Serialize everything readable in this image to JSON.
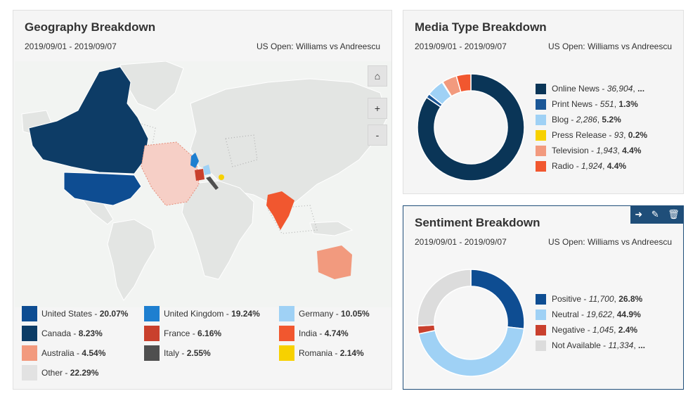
{
  "geography": {
    "title": "Geography Breakdown",
    "date_range": "2019/09/01 - 2019/09/07",
    "topic": "US Open: Williams vs Andreescu",
    "controls": {
      "home_icon": "home-icon",
      "zoom_in_label": "+",
      "zoom_out_label": "-"
    },
    "legend": [
      {
        "name": "United States",
        "pct": "20.07%",
        "color": "#0e4d92"
      },
      {
        "name": "United Kingdom",
        "pct": "19.24%",
        "color": "#1e7fd0"
      },
      {
        "name": "Germany",
        "pct": "10.05%",
        "color": "#9fd1f5"
      },
      {
        "name": "Canada",
        "pct": "8.23%",
        "color": "#0d3c66"
      },
      {
        "name": "France",
        "pct": "6.16%",
        "color": "#c9402d"
      },
      {
        "name": "India",
        "pct": "4.74%",
        "color": "#f1572f"
      },
      {
        "name": "Australia",
        "pct": "4.54%",
        "color": "#f29a7e"
      },
      {
        "name": "Italy",
        "pct": "2.55%",
        "color": "#4f4f4f"
      },
      {
        "name": "Romania",
        "pct": "2.14%",
        "color": "#f7d100"
      },
      {
        "name": "Other",
        "pct": "22.29%",
        "color": "#e2e2e2"
      }
    ]
  },
  "media": {
    "title": "Media Type Breakdown",
    "date_range": "2019/09/01 - 2019/09/07",
    "topic": "US Open: Williams vs Andreescu",
    "items": [
      {
        "name": "Online News",
        "count": "36,904",
        "pct": "...",
        "color": "#0a3557"
      },
      {
        "name": "Print News",
        "count": "551",
        "pct": "1.3%",
        "color": "#1b5797"
      },
      {
        "name": "Blog",
        "count": "2,286",
        "pct": "5.2%",
        "color": "#9fd1f5"
      },
      {
        "name": "Press Release",
        "count": "93",
        "pct": "0.2%",
        "color": "#f7d100"
      },
      {
        "name": "Television",
        "count": "1,943",
        "pct": "4.4%",
        "color": "#f29a7e"
      },
      {
        "name": "Radio",
        "count": "1,924",
        "pct": "4.4%",
        "color": "#f1572f"
      }
    ]
  },
  "sentiment": {
    "title": "Sentiment Breakdown",
    "date_range": "2019/09/01 - 2019/09/07",
    "topic": "US Open: Williams vs Andreescu",
    "toolbar": {
      "export_icon": "export-icon",
      "edit_icon": "pencil-icon",
      "delete_icon": "trash-icon"
    },
    "items": [
      {
        "name": "Positive",
        "count": "11,700",
        "pct": "26.8%",
        "color": "#0e4d92"
      },
      {
        "name": "Neutral",
        "count": "19,622",
        "pct": "44.9%",
        "color": "#9fd1f5"
      },
      {
        "name": "Negative",
        "count": "1,045",
        "pct": "2.4%",
        "color": "#c9402d"
      },
      {
        "name": "Not Available",
        "count": "11,334",
        "pct": "...",
        "color": "#dcdcdc"
      }
    ]
  },
  "chart_data": [
    {
      "type": "pie",
      "title": "Media Type Breakdown",
      "categories": [
        "Online News",
        "Print News",
        "Blog",
        "Press Release",
        "Television",
        "Radio"
      ],
      "values": [
        36904,
        551,
        2286,
        93,
        1943,
        1924
      ],
      "colors": [
        "#0a3557",
        "#1b5797",
        "#9fd1f5",
        "#f7d100",
        "#f29a7e",
        "#f1572f"
      ],
      "legend": "right"
    },
    {
      "type": "pie",
      "title": "Sentiment Breakdown",
      "categories": [
        "Positive",
        "Neutral",
        "Negative",
        "Not Available"
      ],
      "values": [
        11700,
        19622,
        1045,
        11334
      ],
      "colors": [
        "#0e4d92",
        "#9fd1f5",
        "#c9402d",
        "#dcdcdc"
      ],
      "legend": "right"
    }
  ]
}
